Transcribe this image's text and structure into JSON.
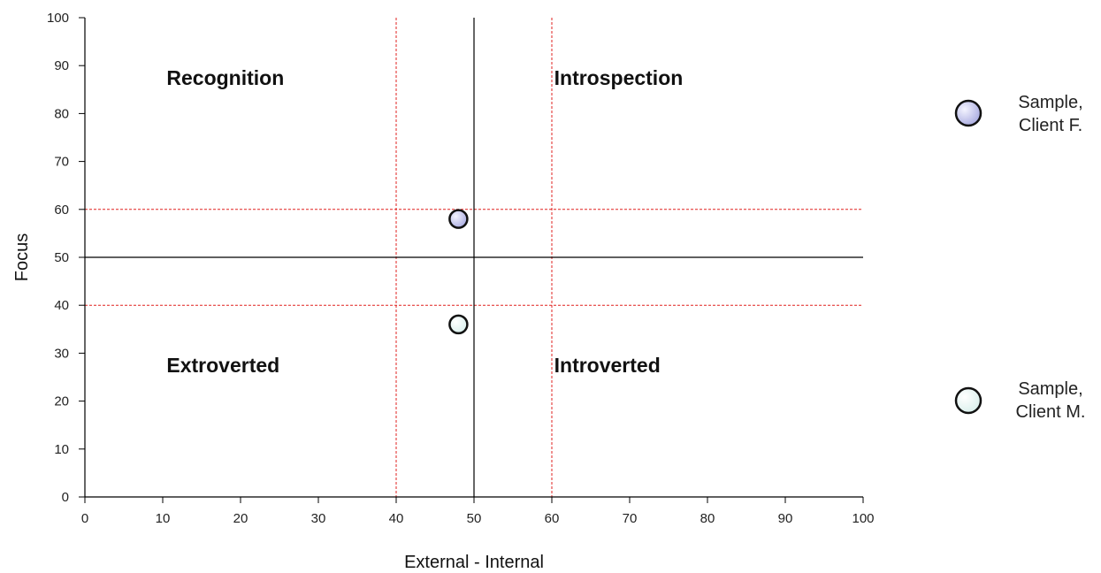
{
  "chart_data": {
    "type": "scatter",
    "xlabel": "External - Internal",
    "ylabel": "Focus",
    "xlim": [
      0,
      100
    ],
    "ylim": [
      0,
      100
    ],
    "xticks": [
      0,
      10,
      20,
      30,
      40,
      50,
      60,
      70,
      80,
      90,
      100
    ],
    "yticks": [
      0,
      10,
      20,
      30,
      40,
      50,
      60,
      70,
      80,
      90,
      100
    ],
    "grid": false,
    "center_lines": {
      "x": 50,
      "y": 50,
      "color": "#000000"
    },
    "reference_lines": {
      "x": [
        40,
        60
      ],
      "y": [
        40,
        60
      ],
      "color": "#e0201f",
      "style": "dashed"
    },
    "quadrant_labels": [
      {
        "text": "Recognition",
        "x": 10.5,
        "y": 86
      },
      {
        "text": "Introspection",
        "x": 60.3,
        "y": 86
      },
      {
        "text": "Extroverted",
        "x": 10.5,
        "y": 26
      },
      {
        "text": "Introverted",
        "x": 60.3,
        "y": 26
      }
    ],
    "series": [
      {
        "name": "Sample, Client F.",
        "x": [
          48
        ],
        "y": [
          58
        ],
        "color": "#c5c6ec"
      },
      {
        "name": "Sample, Client M.",
        "x": [
          48
        ],
        "y": [
          36
        ],
        "color": "#eef8f6"
      }
    ],
    "legend": {
      "placement": "right",
      "entries": [
        {
          "line1": "Sample,",
          "line2": "Client F.",
          "color": "#c5c6ec"
        },
        {
          "line1": "Sample,",
          "line2": "Client M.",
          "color": "#eef8f6"
        }
      ]
    }
  }
}
